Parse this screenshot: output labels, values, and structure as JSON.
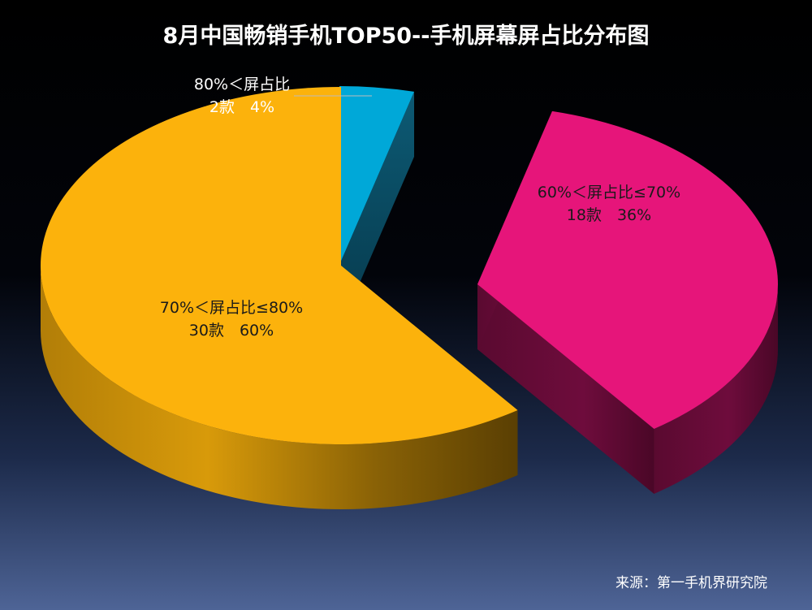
{
  "chart_data": {
    "type": "pie",
    "title": "8月中国畅销手机TOP50--手机屏幕屏占比分布图",
    "slices": [
      {
        "category": "80%＜屏占比",
        "count_label": "2款",
        "percent_label": "4%",
        "value": 4,
        "color": "#00a8d8"
      },
      {
        "category": "60%＜屏占比≤70%",
        "count_label": "18款",
        "percent_label": "36%",
        "value": 36,
        "color": "#e6157a"
      },
      {
        "category": "70%＜屏占比≤80%",
        "count_label": "30款",
        "percent_label": "60%",
        "value": 60,
        "color": "#fcb20c"
      }
    ],
    "three_d": true,
    "exploded": true
  },
  "source": "来源：第一手机界研究院",
  "colors": {
    "background_top": "#000000",
    "background_bottom": "#4e6496",
    "title": "#ffffff"
  }
}
